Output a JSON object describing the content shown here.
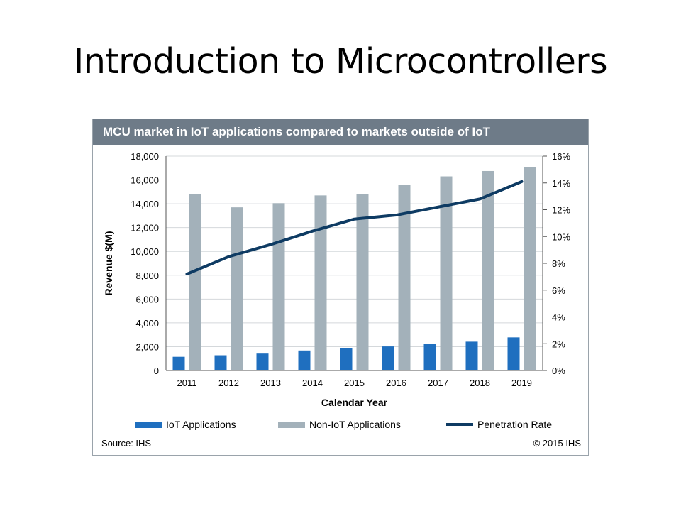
{
  "slide": {
    "title": "Introduction to Microcontrollers"
  },
  "chart_data": {
    "type": "bar",
    "title": "MCU market in IoT applications compared to markets outside of IoT",
    "categories": [
      "2011",
      "2012",
      "2013",
      "2014",
      "2015",
      "2016",
      "2017",
      "2018",
      "2019"
    ],
    "series": [
      {
        "name": "IoT Applications",
        "type": "bar",
        "axis": "left",
        "color": "#1f6fbf",
        "values": [
          1150,
          1280,
          1420,
          1680,
          1870,
          2020,
          2220,
          2420,
          2780
        ]
      },
      {
        "name": "Non-IoT Applications",
        "type": "bar",
        "axis": "left",
        "color": "#a3b1ba",
        "values": [
          14800,
          13700,
          14050,
          14700,
          14800,
          15600,
          16300,
          16750,
          17050
        ]
      },
      {
        "name": "Penetration Rate",
        "type": "line",
        "axis": "right",
        "color": "#0e3b63",
        "values": [
          7.2,
          8.5,
          9.4,
          10.4,
          11.3,
          11.6,
          12.2,
          12.8,
          14.1
        ]
      }
    ],
    "xlabel": "Calendar Year",
    "ylabel": "Revenue $(M)",
    "ylim": [
      0,
      18000
    ],
    "y2lim": [
      0,
      16
    ],
    "yticks": [
      "0",
      "2,000",
      "4,000",
      "6,000",
      "8,000",
      "10,000",
      "12,000",
      "14,000",
      "16,000",
      "18,000"
    ],
    "y2ticks": [
      "0%",
      "2%",
      "4%",
      "6%",
      "8%",
      "10%",
      "12%",
      "14%",
      "16%"
    ],
    "grid": true,
    "legend_position": "bottom",
    "source": "Source: IHS",
    "copyright": "© 2015 IHS"
  }
}
